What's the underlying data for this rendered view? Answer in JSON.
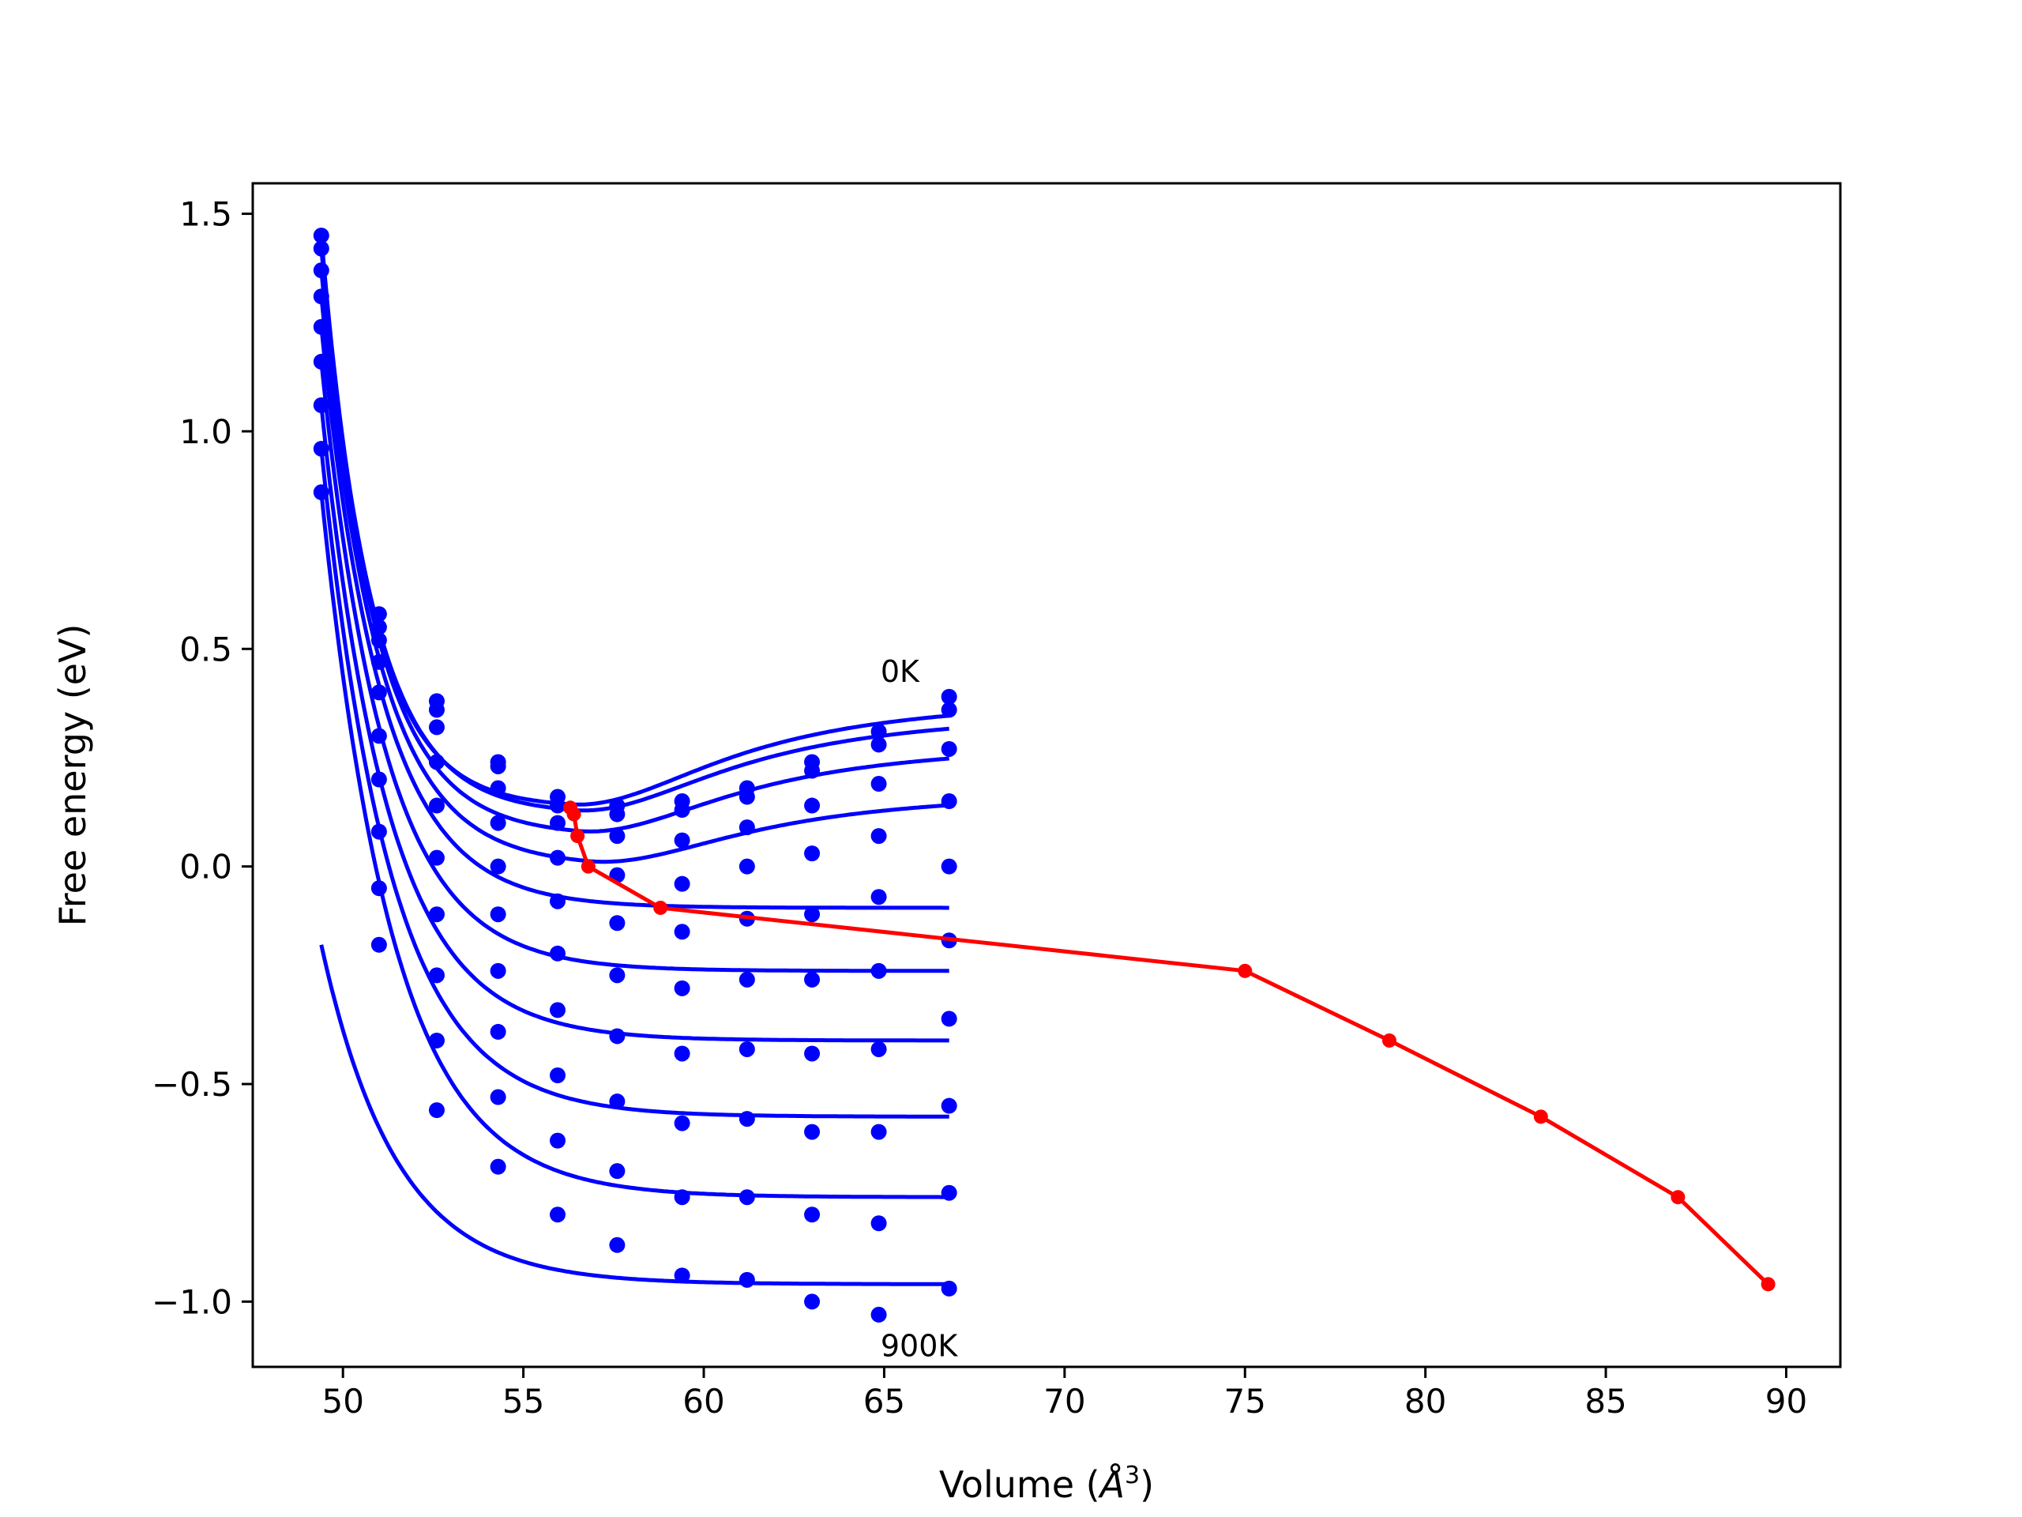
{
  "chart_data": {
    "type": "line",
    "xlabel": "Volume (",
    "xlabel_unit": "Å",
    "xlabel_exp": "3",
    "xlabel_close": ")",
    "ylabel": "Free energy (eV)",
    "xlim": [
      47.5,
      91.5
    ],
    "ylim": [
      -1.15,
      1.57
    ],
    "xticks": [
      50,
      55,
      60,
      65,
      70,
      75,
      80,
      85,
      90
    ],
    "yticks": [
      -1.0,
      -0.5,
      0.0,
      0.5,
      1.0,
      1.5
    ],
    "xtick_labels": [
      "50",
      "55",
      "60",
      "65",
      "70",
      "75",
      "80",
      "85",
      "90"
    ],
    "ytick_labels": [
      "−1.0",
      "−0.5",
      "0.0",
      "0.5",
      "1.0",
      "1.5"
    ],
    "grid": false,
    "colors": {
      "fit": "#0000ff",
      "points": "#0000ff",
      "minima": "#ff0000"
    },
    "annotations": [
      {
        "text": "0K",
        "x": 64.9,
        "y": 0.45
      },
      {
        "text": "900K",
        "x": 64.9,
        "y": -1.1
      }
    ],
    "volumes": [
      49.4,
      51.0,
      52.6,
      54.3,
      55.95,
      57.6,
      59.4,
      61.2,
      63.0,
      64.85,
      66.8
    ],
    "series": [
      {
        "points": [
          1.45,
          0.58,
          0.38,
          0.24,
          0.16,
          0.14,
          0.15,
          0.18,
          0.24,
          0.31,
          0.39
        ],
        "fit": {
          "vmin": 56.3,
          "e0": 0.135,
          "a": 0.118,
          "b": 0.01,
          "c": 0.64,
          "ediff": 0.21
        }
      },
      {
        "points": [
          1.42,
          0.55,
          0.36,
          0.23,
          0.14,
          0.12,
          0.13,
          0.16,
          0.22,
          0.28,
          0.36
        ],
        "fit": {
          "vmin": 56.4,
          "e0": 0.12,
          "a": 0.11,
          "b": 0.01,
          "c": 0.6,
          "ediff": 0.18
        }
      },
      {
        "points": [
          1.37,
          0.52,
          0.32,
          0.18,
          0.1,
          0.07,
          0.06,
          0.09,
          0.14,
          0.19,
          0.27
        ],
        "fit": {
          "vmin": 56.5,
          "e0": 0.07,
          "a": 0.1,
          "b": 0.02,
          "c": 0.5,
          "ediff": 0.14
        }
      },
      {
        "points": [
          1.31,
          0.47,
          0.24,
          0.1,
          0.02,
          -0.02,
          -0.04,
          0.0,
          0.03,
          0.07,
          0.15
        ],
        "fit": {
          "vmin": 56.8,
          "e0": 0.0,
          "a": 0.08,
          "b": 0.03,
          "c": 0.42,
          "ediff": 0.08
        }
      },
      {
        "points": [
          1.24,
          0.4,
          0.14,
          0.0,
          -0.08,
          -0.13,
          -0.15,
          -0.12,
          -0.11,
          -0.07,
          0.0
        ],
        "fit": {
          "vmin": 58.8,
          "e0": -0.095,
          "a": 0.0,
          "b": 0.0,
          "c": 0.4,
          "ediff": 0.01
        }
      },
      {
        "points": [
          1.16,
          0.3,
          0.02,
          -0.11,
          -0.2,
          -0.25,
          -0.28,
          -0.26,
          -0.26,
          -0.24,
          -0.17
        ],
        "fit": {
          "vmin": 75.0,
          "e0": -0.24,
          "a": 0.0,
          "b": 0.0,
          "c": 0.38,
          "ediff": 0.0
        }
      },
      {
        "points": [
          1.06,
          0.2,
          -0.11,
          -0.24,
          -0.33,
          -0.39,
          -0.43,
          -0.42,
          -0.43,
          -0.42,
          -0.35
        ],
        "fit": {
          "vmin": 79.0,
          "e0": -0.4,
          "a": 0.0,
          "b": 0.0,
          "c": 0.37,
          "ediff": 0.0
        }
      },
      {
        "points": [
          0.96,
          0.08,
          -0.25,
          -0.38,
          -0.48,
          -0.54,
          -0.59,
          -0.58,
          -0.61,
          -0.61,
          -0.55
        ],
        "fit": {
          "vmin": 83.2,
          "e0": -0.575,
          "a": 0.0,
          "b": 0.0,
          "c": 0.36,
          "ediff": 0.0
        }
      },
      {
        "points": [
          0.86,
          -0.05,
          -0.4,
          -0.53,
          -0.63,
          -0.7,
          -0.76,
          -0.76,
          -0.8,
          -0.82,
          -0.75
        ],
        "fit": {
          "vmin": 87.0,
          "e0": -0.76,
          "a": 0.0,
          "b": 0.0,
          "c": 0.35,
          "ediff": 0.0
        }
      },
      {
        "points": [
          null,
          -0.18,
          -0.56,
          -0.69,
          -0.8,
          -0.87,
          -0.94,
          -0.95,
          -1.0,
          -1.03,
          -0.97
        ],
        "fit": {
          "vmin": 89.5,
          "e0": -0.96,
          "a": 0.0,
          "b": 0.0,
          "c": 0.34,
          "ediff": 0.0
        }
      }
    ],
    "minima_curve": {
      "x": [
        56.3,
        56.4,
        56.5,
        56.8,
        58.8,
        75.0,
        79.0,
        83.2,
        87.0,
        89.5
      ],
      "y": [
        0.135,
        0.12,
        0.07,
        0.0,
        -0.095,
        -0.24,
        -0.4,
        -0.575,
        -0.76,
        -0.96
      ]
    }
  }
}
